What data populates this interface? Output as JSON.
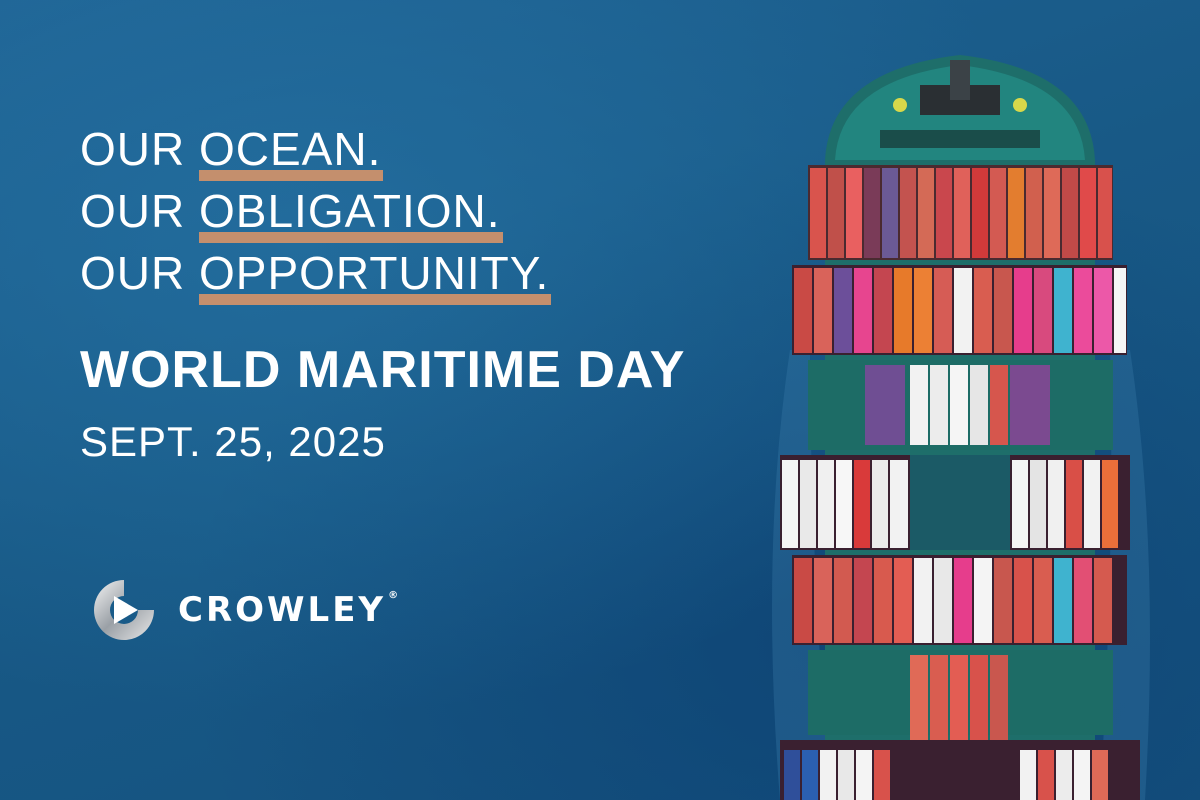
{
  "headline": {
    "line1": {
      "prefix": "OUR ",
      "highlight": "OCEAN."
    },
    "line2": {
      "prefix": "OUR ",
      "highlight": "OBLIGATION."
    },
    "line3": {
      "prefix": "OUR ",
      "highlight": "OPPORTUNITY."
    }
  },
  "event_title": "WORLD MARITIME DAY",
  "event_date": "SEPT. 25, 2025",
  "brand": {
    "name": "CROWLEY",
    "registered_mark": "®"
  },
  "colors": {
    "ocean": "#1c5c8a",
    "highlight_underline": "#c48f6d",
    "text": "#ffffff"
  },
  "imagery": {
    "background": "aerial-ocean-water",
    "subject": "container-ship-icon"
  }
}
